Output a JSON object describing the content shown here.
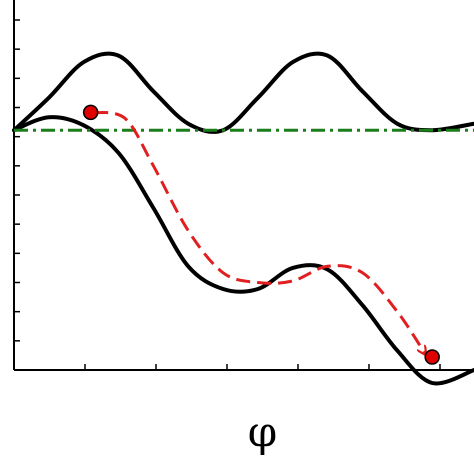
{
  "chart_data": {
    "type": "line",
    "title": "",
    "xlabel": "φ",
    "ylabel": "",
    "grid": false,
    "legend": "none",
    "xlim": [
      0,
      6.6
    ],
    "ylim": [
      -7.4,
      3.4
    ],
    "x_tick_count": 7,
    "y_tick_count": 13,
    "series": [
      {
        "style": "solid",
        "color": "#000000",
        "x": [
          0,
          0.5,
          1.0,
          1.5,
          2.0,
          2.5,
          3.0,
          3.5,
          4.0,
          4.5,
          5.0,
          5.5,
          6.0,
          6.6
        ],
        "y": [
          0.0,
          1.0,
          2.1,
          2.3,
          1.2,
          0.2,
          0.0,
          1.0,
          2.1,
          2.3,
          1.2,
          0.2,
          0.0,
          0.2
        ]
      },
      {
        "style": "solid",
        "color": "#000000",
        "x": [
          0,
          0.5,
          1.0,
          1.5,
          2.0,
          2.5,
          3.0,
          3.5,
          4.0,
          4.5,
          5.0,
          5.5,
          6.0,
          6.6
        ],
        "y": [
          0.0,
          0.4,
          0.15,
          -0.7,
          -2.4,
          -4.2,
          -4.9,
          -4.9,
          -4.25,
          -4.3,
          -5.4,
          -6.8,
          -7.8,
          -7.4
        ]
      },
      {
        "style": "dash-dot",
        "color": "#1a7f1a",
        "x": [
          0,
          6.6
        ],
        "y": [
          0.0,
          0.0
        ]
      },
      {
        "style": "dashed",
        "color": "#e02020",
        "x": [
          1.15,
          1.6,
          2.0,
          2.5,
          3.0,
          3.5,
          4.0,
          4.5,
          5.0,
          5.5,
          5.9
        ],
        "y": [
          0.55,
          0.35,
          -1.1,
          -3.1,
          -4.4,
          -4.7,
          -4.65,
          -4.2,
          -4.4,
          -5.6,
          -6.9
        ]
      }
    ],
    "points": [
      {
        "x": 1.1,
        "y": 0.55,
        "color": "#e00000"
      },
      {
        "x": 6.0,
        "y": -7.0,
        "color": "#e00000"
      }
    ]
  }
}
